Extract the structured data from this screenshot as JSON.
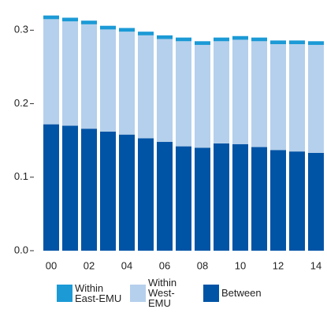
{
  "chart_data": {
    "type": "stacked_bar",
    "categories": [
      "00",
      null,
      "02",
      null,
      "04",
      null,
      "06",
      null,
      "08",
      null,
      "10",
      null,
      "12",
      null,
      "14"
    ],
    "series": [
      {
        "name": "Within East-EMU",
        "color": "#1b9ad6",
        "values": [
          0.005,
          0.005,
          0.005,
          0.005,
          0.005,
          0.005,
          0.005,
          0.005,
          0.005,
          0.005,
          0.005,
          0.005,
          0.005,
          0.005,
          0.005
        ]
      },
      {
        "name": "Within West-EMU",
        "color": "#b5d0ec",
        "values": [
          0.143,
          0.142,
          0.142,
          0.139,
          0.14,
          0.14,
          0.14,
          0.143,
          0.14,
          0.139,
          0.142,
          0.144,
          0.144,
          0.146,
          0.147
        ]
      },
      {
        "name": "Between",
        "color": "#0054a6",
        "values": [
          0.172,
          0.17,
          0.166,
          0.162,
          0.158,
          0.153,
          0.148,
          0.142,
          0.14,
          0.146,
          0.145,
          0.141,
          0.137,
          0.135,
          0.133
        ]
      }
    ],
    "ylim": [
      0,
      0.325
    ],
    "yticks": [
      {
        "value": 0,
        "label": "0.0"
      },
      0.1,
      0.2,
      0.3
    ],
    "grid": false
  }
}
